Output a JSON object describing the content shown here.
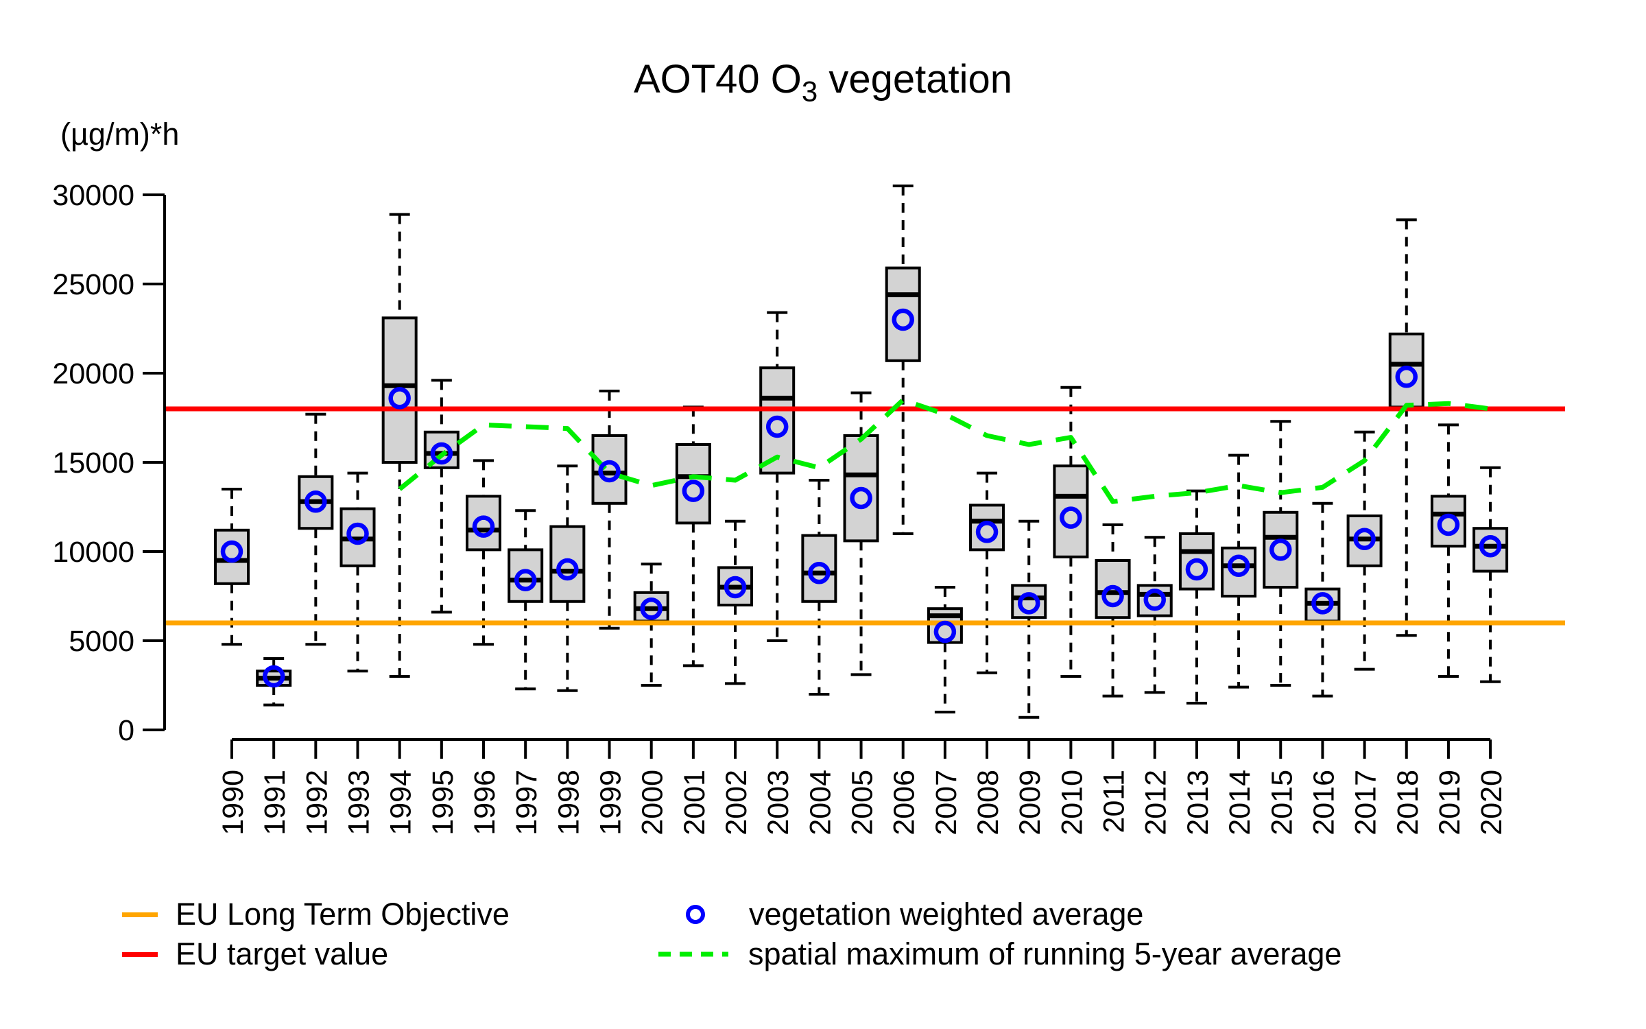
{
  "title": {
    "prefix": "AOT40 O",
    "subscript": "3",
    "suffix": " vegetation"
  },
  "y_axis": {
    "unit_label": "(µg/m)*h",
    "tick_values": [
      0,
      5000,
      10000,
      15000,
      20000,
      25000,
      30000
    ]
  },
  "x_axis": {
    "years": [
      1990,
      1991,
      1992,
      1993,
      1994,
      1995,
      1996,
      1997,
      1998,
      1999,
      2000,
      2001,
      2002,
      2003,
      2004,
      2005,
      2006,
      2007,
      2008,
      2009,
      2010,
      2011,
      2012,
      2013,
      2014,
      2015,
      2016,
      2017,
      2018,
      2019,
      2020
    ]
  },
  "colors": {
    "background": "#ffffff",
    "text": "#000000",
    "box_fill": "#d3d3d3",
    "box_border": "#000000",
    "median": "#000000",
    "mean_marker": "#0000ff",
    "green_line": "#00ee00",
    "target_line": "#ff0000",
    "lto_line": "#ffa500"
  },
  "legend": {
    "items": [
      {
        "label": "EU Long Term Objective",
        "swatch": "orange-line"
      },
      {
        "label": "EU target value",
        "swatch": "red-line"
      },
      {
        "label": "vegetation weighted average",
        "swatch": "blue-circle"
      },
      {
        "label": "spatial maximum of running 5-year average",
        "swatch": "green-dashed-line"
      }
    ]
  },
  "chart_data": {
    "type": "box",
    "title": "AOT40 O3 vegetation",
    "xlabel": "",
    "ylabel": "(µg/m)*h",
    "ylim": [
      0,
      30000
    ],
    "grid": false,
    "legend_position": "bottom",
    "categories": [
      1990,
      1991,
      1992,
      1993,
      1994,
      1995,
      1996,
      1997,
      1998,
      1999,
      2000,
      2001,
      2002,
      2003,
      2004,
      2005,
      2006,
      2007,
      2008,
      2009,
      2010,
      2011,
      2012,
      2013,
      2014,
      2015,
      2016,
      2017,
      2018,
      2019,
      2020
    ],
    "boxes": [
      {
        "year": 1990,
        "whisker_low": 4800,
        "q1": 8200,
        "median": 9500,
        "q3": 11200,
        "whisker_high": 13500,
        "mean": 10000
      },
      {
        "year": 1991,
        "whisker_low": 1400,
        "q1": 2500,
        "median": 2900,
        "q3": 3300,
        "whisker_high": 4000,
        "mean": 3000
      },
      {
        "year": 1992,
        "whisker_low": 4800,
        "q1": 11300,
        "median": 12800,
        "q3": 14200,
        "whisker_high": 17700,
        "mean": 12800
      },
      {
        "year": 1993,
        "whisker_low": 3300,
        "q1": 9200,
        "median": 10700,
        "q3": 12400,
        "whisker_high": 14400,
        "mean": 11000
      },
      {
        "year": 1994,
        "whisker_low": 3000,
        "q1": 15000,
        "median": 19300,
        "q3": 23100,
        "whisker_high": 28900,
        "mean": 18600
      },
      {
        "year": 1995,
        "whisker_low": 6600,
        "q1": 14700,
        "median": 15500,
        "q3": 16700,
        "whisker_high": 19600,
        "mean": 15500
      },
      {
        "year": 1996,
        "whisker_low": 4800,
        "q1": 10100,
        "median": 11200,
        "q3": 13100,
        "whisker_high": 15100,
        "mean": 11400
      },
      {
        "year": 1997,
        "whisker_low": 2300,
        "q1": 7200,
        "median": 8400,
        "q3": 10100,
        "whisker_high": 12300,
        "mean": 8400
      },
      {
        "year": 1998,
        "whisker_low": 2200,
        "q1": 7200,
        "median": 8900,
        "q3": 11400,
        "whisker_high": 14800,
        "mean": 9000
      },
      {
        "year": 1999,
        "whisker_low": 5700,
        "q1": 12700,
        "median": 14400,
        "q3": 16500,
        "whisker_high": 19000,
        "mean": 14500
      },
      {
        "year": 2000,
        "whisker_low": 2500,
        "q1": 6100,
        "median": 6800,
        "q3": 7700,
        "whisker_high": 9300,
        "mean": 6800
      },
      {
        "year": 2001,
        "whisker_low": 3600,
        "q1": 11600,
        "median": 14200,
        "q3": 16000,
        "whisker_high": 18100,
        "mean": 13400
      },
      {
        "year": 2002,
        "whisker_low": 2600,
        "q1": 7000,
        "median": 8000,
        "q3": 9100,
        "whisker_high": 11700,
        "mean": 8000
      },
      {
        "year": 2003,
        "whisker_low": 5000,
        "q1": 14400,
        "median": 18600,
        "q3": 20300,
        "whisker_high": 23400,
        "mean": 17000
      },
      {
        "year": 2004,
        "whisker_low": 2000,
        "q1": 7200,
        "median": 8800,
        "q3": 10900,
        "whisker_high": 14000,
        "mean": 8800
      },
      {
        "year": 2005,
        "whisker_low": 3100,
        "q1": 10600,
        "median": 14300,
        "q3": 16500,
        "whisker_high": 18900,
        "mean": 13000
      },
      {
        "year": 2006,
        "whisker_low": 11000,
        "q1": 20700,
        "median": 24400,
        "q3": 25900,
        "whisker_high": 30500,
        "mean": 23000
      },
      {
        "year": 2007,
        "whisker_low": 1000,
        "q1": 4900,
        "median": 6400,
        "q3": 6800,
        "whisker_high": 8000,
        "mean": 5500
      },
      {
        "year": 2008,
        "whisker_low": 3200,
        "q1": 10100,
        "median": 11700,
        "q3": 12600,
        "whisker_high": 14400,
        "mean": 11100
      },
      {
        "year": 2009,
        "whisker_low": 700,
        "q1": 6300,
        "median": 7400,
        "q3": 8100,
        "whisker_high": 11700,
        "mean": 7100
      },
      {
        "year": 2010,
        "whisker_low": 3000,
        "q1": 9700,
        "median": 13100,
        "q3": 14800,
        "whisker_high": 19200,
        "mean": 11900
      },
      {
        "year": 2011,
        "whisker_low": 1900,
        "q1": 6300,
        "median": 7700,
        "q3": 9500,
        "whisker_high": 11500,
        "mean": 7500
      },
      {
        "year": 2012,
        "whisker_low": 2100,
        "q1": 6400,
        "median": 7600,
        "q3": 8100,
        "whisker_high": 10800,
        "mean": 7300
      },
      {
        "year": 2013,
        "whisker_low": 1500,
        "q1": 7900,
        "median": 10000,
        "q3": 11000,
        "whisker_high": 13400,
        "mean": 9000
      },
      {
        "year": 2014,
        "whisker_low": 2400,
        "q1": 7500,
        "median": 9200,
        "q3": 10200,
        "whisker_high": 15400,
        "mean": 9200
      },
      {
        "year": 2015,
        "whisker_low": 2500,
        "q1": 8000,
        "median": 10800,
        "q3": 12200,
        "whisker_high": 17300,
        "mean": 10100
      },
      {
        "year": 2016,
        "whisker_low": 1900,
        "q1": 6100,
        "median": 7100,
        "q3": 7900,
        "whisker_high": 12700,
        "mean": 7100
      },
      {
        "year": 2017,
        "whisker_low": 3400,
        "q1": 9200,
        "median": 10700,
        "q3": 12000,
        "whisker_high": 16700,
        "mean": 10700
      },
      {
        "year": 2018,
        "whisker_low": 5300,
        "q1": 18100,
        "median": 20500,
        "q3": 22200,
        "whisker_high": 28600,
        "mean": 19800
      },
      {
        "year": 2019,
        "whisker_low": 3000,
        "q1": 10300,
        "median": 12100,
        "q3": 13100,
        "whisker_high": 17100,
        "mean": 11500
      },
      {
        "year": 2020,
        "whisker_low": 2700,
        "q1": 8900,
        "median": 10300,
        "q3": 11300,
        "whisker_high": 14700,
        "mean": 10300
      }
    ],
    "series": [
      {
        "name": "spatial maximum of running 5-year average",
        "type": "dashed-line",
        "x": [
          1994,
          1995,
          1996,
          1997,
          1998,
          1999,
          2000,
          2001,
          2002,
          2003,
          2004,
          2005,
          2006,
          2007,
          2008,
          2009,
          2010,
          2011,
          2012,
          2013,
          2014,
          2015,
          2016,
          2017,
          2018,
          2019,
          2020
        ],
        "values": [
          13500,
          15400,
          17100,
          17000,
          16900,
          14400,
          13700,
          14200,
          14000,
          15300,
          14700,
          16300,
          18500,
          17700,
          16500,
          16000,
          16400,
          12800,
          13100,
          13300,
          13700,
          13300,
          13600,
          15100,
          18200,
          18300,
          18000
        ]
      }
    ],
    "reference_lines": [
      {
        "label": "EU target value",
        "value": 18000,
        "color": "#ff0000"
      },
      {
        "label": "EU Long Term Objective",
        "value": 6000,
        "color": "#ffa500"
      }
    ]
  }
}
